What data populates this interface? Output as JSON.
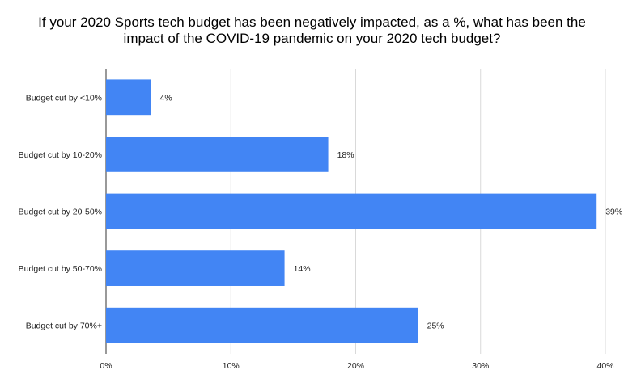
{
  "chart_data": {
    "type": "bar",
    "orientation": "horizontal",
    "title_line1": "If your 2020 Sports tech budget has been negatively impacted, as a %, what has been the",
    "title_line2": "impact of the COVID-19 pandemic on your 2020 tech budget?",
    "categories": [
      "Budget cut by <10%",
      "Budget cut by 10-20%",
      "Budget cut by 20-50%",
      "Budget cut by 50-70%",
      "Budget cut by 70%+"
    ],
    "values": [
      3.6,
      17.8,
      39.3,
      14.3,
      25.0
    ],
    "data_labels": [
      "4%",
      "18%",
      "39%",
      "14%",
      "25%"
    ],
    "xlim": [
      0,
      40
    ],
    "x_ticks": [
      0,
      10,
      20,
      30,
      40
    ],
    "x_tick_labels": [
      "0%",
      "10%",
      "20%",
      "30%",
      "40%"
    ],
    "grid": true,
    "bar_color": "#4285f4",
    "xlabel": "",
    "ylabel": ""
  }
}
